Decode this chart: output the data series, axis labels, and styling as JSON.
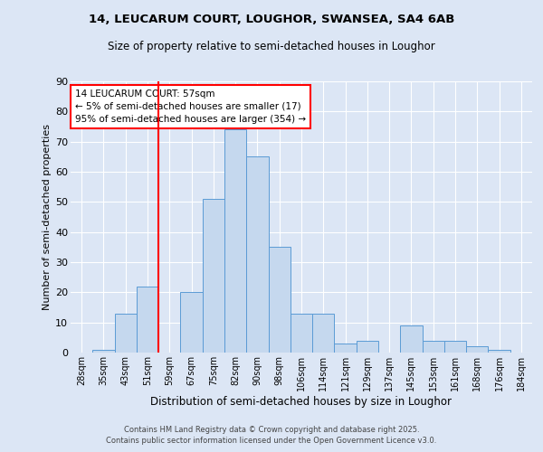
{
  "title1": "14, LEUCARUM COURT, LOUGHOR, SWANSEA, SA4 6AB",
  "title2": "Size of property relative to semi-detached houses in Loughor",
  "xlabel": "Distribution of semi-detached houses by size in Loughor",
  "ylabel": "Number of semi-detached properties",
  "footer1": "Contains HM Land Registry data © Crown copyright and database right 2025.",
  "footer2": "Contains public sector information licensed under the Open Government Licence v3.0.",
  "annotation_title": "14 LEUCARUM COURT: 57sqm",
  "annotation_line1": "← 5% of semi-detached houses are smaller (17)",
  "annotation_line2": "95% of semi-detached houses are larger (354) →",
  "red_line_idx": 3.5,
  "bar_color": "#c5d8ee",
  "bar_edge_color": "#5b9bd5",
  "background_color": "#dce6f5",
  "plot_bg_color": "#dce6f5",
  "categories": [
    "28sqm",
    "35sqm",
    "43sqm",
    "51sqm",
    "59sqm",
    "67sqm",
    "75sqm",
    "82sqm",
    "90sqm",
    "98sqm",
    "106sqm",
    "114sqm",
    "121sqm",
    "129sqm",
    "137sqm",
    "145sqm",
    "153sqm",
    "161sqm",
    "168sqm",
    "176sqm",
    "184sqm"
  ],
  "values": [
    0,
    1,
    13,
    22,
    0,
    20,
    51,
    74,
    65,
    35,
    13,
    13,
    3,
    4,
    0,
    9,
    4,
    4,
    2,
    1,
    0
  ],
  "ylim": [
    0,
    90
  ],
  "yticks": [
    0,
    10,
    20,
    30,
    40,
    50,
    60,
    70,
    80,
    90
  ]
}
